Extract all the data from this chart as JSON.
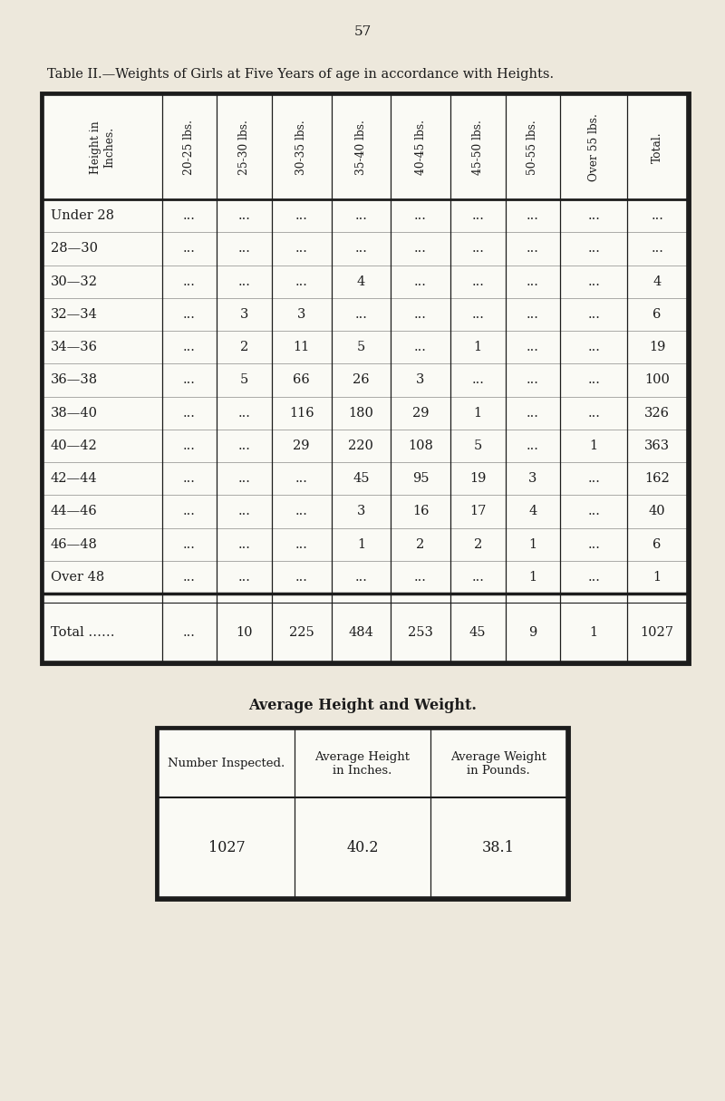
{
  "page_number": "57",
  "title": "Table II.—Weights of Girls at Five Years of age in accordance with Heights.",
  "bg_color": "#EDE8DC",
  "cell_bg": "#FAFAF5",
  "text_color": "#1C1C1C",
  "col_headers": [
    "Height in\nInches.",
    "20-25 lbs.",
    "25-30 lbs.",
    "30-35 lbs.",
    "35-40 lbs.",
    "40-45 lbs.",
    "45-50 lbs.",
    "50-55 lbs.",
    "Over 55 lbs.",
    "Total."
  ],
  "rows": [
    [
      "Under 28",
      "...",
      "...",
      "...",
      "...",
      "...",
      "...",
      "...",
      "...",
      "..."
    ],
    [
      "28—30",
      "...",
      "...",
      "...",
      "...",
      "...",
      "...",
      "...",
      "...",
      "..."
    ],
    [
      "30—32",
      "...",
      "...",
      "...",
      "4",
      "...",
      "...",
      "...",
      "...",
      "4"
    ],
    [
      "32—34",
      "...",
      "3",
      "3",
      "...",
      "...",
      "...",
      "...",
      "...",
      "6"
    ],
    [
      "34—36",
      "...",
      "2",
      "11",
      "5",
      "...",
      "1",
      "...",
      "...",
      "19"
    ],
    [
      "36—38",
      "...",
      "5",
      "66",
      "26",
      "3",
      "...",
      "...",
      "...",
      "100"
    ],
    [
      "38—40",
      "...",
      "...",
      "116",
      "180",
      "29",
      "1",
      "...",
      "...",
      "326"
    ],
    [
      "40—42",
      "...",
      "...",
      "29",
      "220",
      "108",
      "5",
      "...",
      "1",
      "363"
    ],
    [
      "42—44",
      "...",
      "...",
      "...",
      "45",
      "95",
      "19",
      "3",
      "...",
      "162"
    ],
    [
      "44—46",
      "...",
      "...",
      "...",
      "3",
      "16",
      "17",
      "4",
      "...",
      "40"
    ],
    [
      "46—48",
      "...",
      "...",
      "...",
      "1",
      "2",
      "2",
      "1",
      "...",
      "6"
    ],
    [
      "Over 48",
      "...",
      "...",
      "...",
      "...",
      "...",
      "...",
      "1",
      "...",
      "1"
    ]
  ],
  "total_row": [
    "Total ……",
    "...",
    "10",
    "225",
    "484",
    "253",
    "45",
    "9",
    "1",
    "1027"
  ],
  "avg_title": "Average Height and Weight.",
  "avg_col_headers": [
    "Number Inspected.",
    "Average Height\nin Inches.",
    "Average Weight\nin Pounds."
  ],
  "avg_data": [
    "1027",
    "40.2",
    "38.1"
  ],
  "col_widths_rel": [
    1.55,
    0.72,
    0.72,
    0.78,
    0.78,
    0.78,
    0.72,
    0.72,
    0.88,
    0.78
  ]
}
